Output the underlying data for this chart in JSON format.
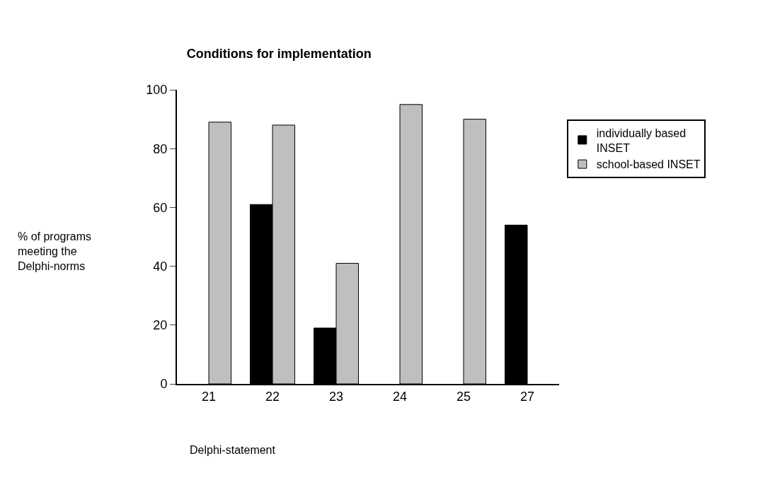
{
  "chart_data": {
    "type": "bar",
    "title": "Conditions for implementation",
    "xlabel": "Delphi-statement",
    "ylabel": "% of programs meeting the Delphi-norms",
    "categories": [
      "21",
      "22",
      "23",
      "24",
      "25",
      "27"
    ],
    "series": [
      {
        "name": "individually based INSET",
        "color": "#000000",
        "values": [
          null,
          61,
          19,
          null,
          null,
          54
        ]
      },
      {
        "name": "school-based INSET",
        "color": "#bfbfbf",
        "values": [
          89,
          88,
          41,
          95,
          90,
          null
        ]
      }
    ],
    "ylim": [
      0,
      100
    ],
    "yticks": [
      0,
      20,
      40,
      60,
      80,
      100
    ],
    "legend": "right"
  }
}
